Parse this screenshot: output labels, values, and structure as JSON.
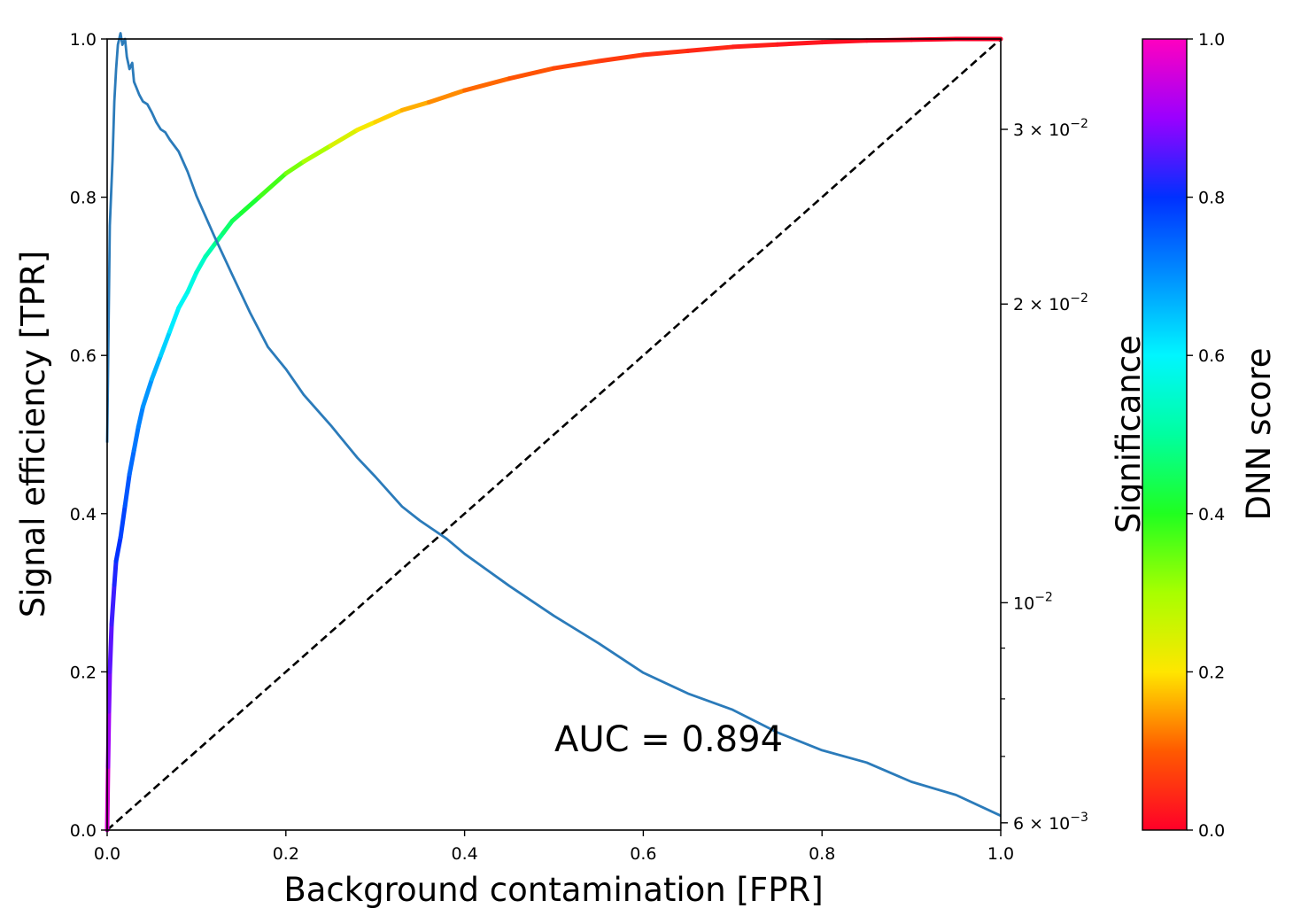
{
  "chart_data": {
    "type": "line",
    "xlabel": "Background contamination [FPR]",
    "ylabel": "Signal efficiency [TPR]",
    "y2label": "Significance",
    "colorbar_label": "DNN score",
    "annotation": "AUC = 0.894",
    "xlim": [
      0,
      1
    ],
    "ylim": [
      0,
      1
    ],
    "y2lim": [
      0.0059,
      0.037
    ],
    "y2scale": "log",
    "colorbar_lim": [
      0,
      1
    ],
    "colormap": "gist_rainbow (red at 0 → magenta at 1)",
    "grid": false,
    "x_ticks": [
      "0.0",
      "0.2",
      "0.4",
      "0.6",
      "0.8",
      "1.0"
    ],
    "y_ticks": [
      "0.0",
      "0.2",
      "0.4",
      "0.6",
      "0.8",
      "1.0"
    ],
    "y2_ticks": [
      {
        "value": 0.006,
        "mantissa": "6",
        "exp": "−3"
      },
      {
        "value": 0.01,
        "mantissa": "",
        "exp": "−2"
      },
      {
        "value": 0.02,
        "mantissa": "2",
        "exp": "−2"
      },
      {
        "value": 0.03,
        "mantissa": "3",
        "exp": "−2"
      }
    ],
    "y2_minor_ticks": [
      0.007,
      0.008,
      0.009
    ],
    "colorbar_ticks": [
      "0.0",
      "0.2",
      "0.4",
      "0.6",
      "0.8",
      "1.0"
    ],
    "series": [
      {
        "kind": "roc_curve_colored_by_score",
        "x": [
          0.0,
          0.001,
          0.002,
          0.003,
          0.005,
          0.008,
          0.01,
          0.015,
          0.02,
          0.025,
          0.03,
          0.035,
          0.04,
          0.05,
          0.06,
          0.07,
          0.08,
          0.09,
          0.1,
          0.11,
          0.12,
          0.13,
          0.14,
          0.15,
          0.17,
          0.2,
          0.22,
          0.25,
          0.28,
          0.3,
          0.33,
          0.36,
          0.4,
          0.45,
          0.5,
          0.55,
          0.6,
          0.65,
          0.7,
          0.75,
          0.8,
          0.85,
          0.9,
          0.95,
          1.0
        ],
        "y": [
          0.0,
          0.08,
          0.15,
          0.2,
          0.26,
          0.31,
          0.34,
          0.37,
          0.41,
          0.45,
          0.48,
          0.51,
          0.535,
          0.57,
          0.6,
          0.63,
          0.66,
          0.68,
          0.705,
          0.725,
          0.74,
          0.755,
          0.77,
          0.78,
          0.8,
          0.83,
          0.845,
          0.865,
          0.885,
          0.895,
          0.91,
          0.92,
          0.935,
          0.95,
          0.963,
          0.972,
          0.98,
          0.985,
          0.99,
          0.993,
          0.996,
          0.998,
          0.999,
          1.0,
          1.0
        ],
        "score": [
          1.0,
          0.93,
          0.89,
          0.87,
          0.85,
          0.83,
          0.81,
          0.79,
          0.77,
          0.75,
          0.73,
          0.72,
          0.71,
          0.68,
          0.65,
          0.62,
          0.6,
          0.58,
          0.56,
          0.53,
          0.5,
          0.47,
          0.45,
          0.43,
          0.4,
          0.35,
          0.32,
          0.27,
          0.22,
          0.2,
          0.17,
          0.15,
          0.12,
          0.1,
          0.085,
          0.07,
          0.06,
          0.05,
          0.04,
          0.03,
          0.02,
          0.015,
          0.01,
          0.005,
          0.0
        ]
      },
      {
        "kind": "significance",
        "axis": "y2",
        "color": "#2b7bba",
        "x": [
          0.0,
          0.003,
          0.006,
          0.008,
          0.01,
          0.012,
          0.015,
          0.017,
          0.02,
          0.022,
          0.025,
          0.028,
          0.03,
          0.033,
          0.036,
          0.04,
          0.045,
          0.05,
          0.055,
          0.06,
          0.065,
          0.07,
          0.08,
          0.09,
          0.1,
          0.12,
          0.14,
          0.16,
          0.18,
          0.2,
          0.22,
          0.25,
          0.28,
          0.3,
          0.33,
          0.35,
          0.38,
          0.4,
          0.45,
          0.5,
          0.55,
          0.6,
          0.65,
          0.7,
          0.75,
          0.8,
          0.85,
          0.9,
          0.95,
          1.0
        ],
        "y": [
          0.0145,
          0.024,
          0.028,
          0.032,
          0.0345,
          0.0365,
          0.0375,
          0.0365,
          0.037,
          0.0355,
          0.0345,
          0.035,
          0.0335,
          0.033,
          0.0325,
          0.032,
          0.0318,
          0.0312,
          0.0305,
          0.03,
          0.0298,
          0.0293,
          0.0285,
          0.0272,
          0.0257,
          0.0234,
          0.0214,
          0.0196,
          0.0181,
          0.0172,
          0.0162,
          0.0151,
          0.014,
          0.0134,
          0.0125,
          0.0121,
          0.0116,
          0.0112,
          0.0104,
          0.0097,
          0.0091,
          0.0085,
          0.0081,
          0.0078,
          0.0074,
          0.0071,
          0.0069,
          0.0066,
          0.0064,
          0.0061
        ]
      },
      {
        "kind": "diagonal",
        "style": "dashed",
        "color": "#000000",
        "x": [
          0,
          1
        ],
        "y": [
          0,
          1
        ]
      }
    ]
  }
}
